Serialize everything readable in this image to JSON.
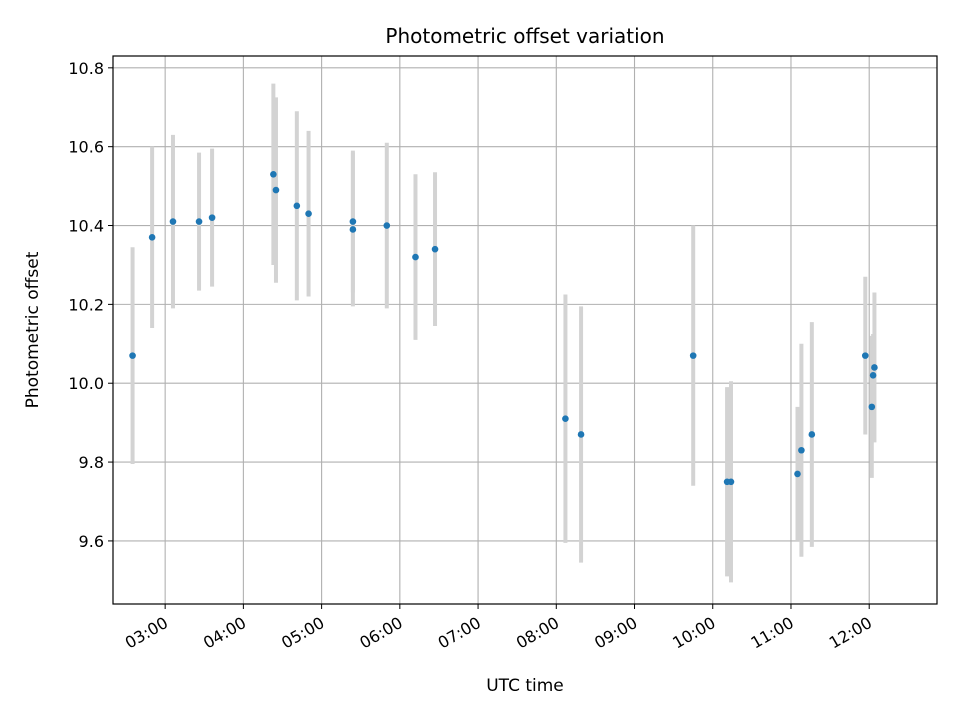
{
  "chart_data": {
    "type": "scatter",
    "title": "Photometric offset variation",
    "xlabel": "UTC time",
    "ylabel": "Photometric offset",
    "x_unit": "hours UTC",
    "xlim": [
      "02:20",
      "12:52"
    ],
    "ylim": [
      9.44,
      10.83
    ],
    "grid": true,
    "x_ticks": [
      "03:00",
      "04:00",
      "05:00",
      "06:00",
      "07:00",
      "08:00",
      "09:00",
      "10:00",
      "11:00",
      "12:00"
    ],
    "y_ticks": [
      "9.6",
      "9.8",
      "10.0",
      "10.2",
      "10.4",
      "10.6",
      "10.8"
    ],
    "marker_color": "#1f77b4",
    "errorbar_color": "#d3d3d3",
    "points": [
      {
        "x": "02:35",
        "y": 10.07,
        "err": 0.275
      },
      {
        "x": "02:50",
        "y": 10.37,
        "err": 0.23
      },
      {
        "x": "03:06",
        "y": 10.41,
        "err": 0.22
      },
      {
        "x": "03:26",
        "y": 10.41,
        "err": 0.175
      },
      {
        "x": "03:36",
        "y": 10.42,
        "err": 0.175
      },
      {
        "x": "04:23",
        "y": 10.53,
        "err": 0.23
      },
      {
        "x": "04:25",
        "y": 10.49,
        "err": 0.235
      },
      {
        "x": "04:41",
        "y": 10.45,
        "err": 0.24
      },
      {
        "x": "04:50",
        "y": 10.43,
        "err": 0.21
      },
      {
        "x": "05:24",
        "y": 10.41,
        "err": 0.18
      },
      {
        "x": "05:24",
        "y": 10.39,
        "err": 0.195
      },
      {
        "x": "05:50",
        "y": 10.4,
        "err": 0.21
      },
      {
        "x": "06:12",
        "y": 10.32,
        "err": 0.21
      },
      {
        "x": "06:27",
        "y": 10.34,
        "err": 0.195
      },
      {
        "x": "08:07",
        "y": 9.91,
        "err": 0.315
      },
      {
        "x": "08:19",
        "y": 9.87,
        "err": 0.325
      },
      {
        "x": "09:45",
        "y": 10.07,
        "err": 0.33
      },
      {
        "x": "10:11",
        "y": 9.75,
        "err": 0.24
      },
      {
        "x": "10:14",
        "y": 9.75,
        "err": 0.255
      },
      {
        "x": "11:05",
        "y": 9.77,
        "err": 0.17
      },
      {
        "x": "11:08",
        "y": 9.83,
        "err": 0.27
      },
      {
        "x": "11:16",
        "y": 9.87,
        "err": 0.285
      },
      {
        "x": "11:57",
        "y": 10.07,
        "err": 0.2
      },
      {
        "x": "12:02",
        "y": 9.94,
        "err": 0.18
      },
      {
        "x": "12:03",
        "y": 10.02,
        "err": 0.105
      },
      {
        "x": "12:04",
        "y": 10.04,
        "err": 0.19
      }
    ]
  }
}
